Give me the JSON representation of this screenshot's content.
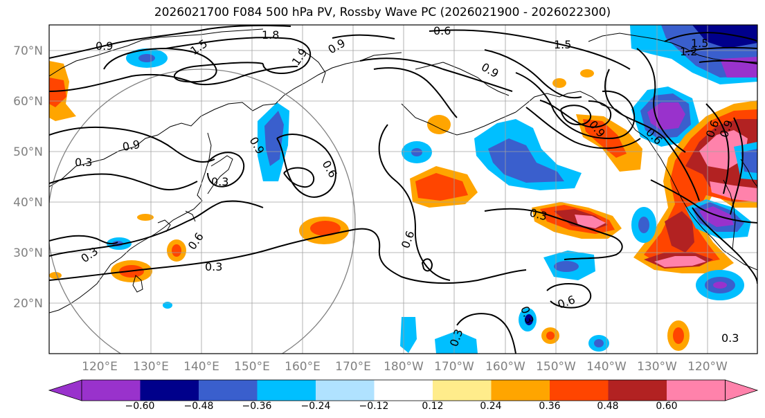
{
  "title": "2026021700 F084 500 hPa PV, Rossby Wave PC (2026021900 - 2026022300)",
  "lat_labels": [
    "70°N",
    "60°N",
    "50°N",
    "40°N",
    "30°N",
    "20°N"
  ],
  "lon_labels": [
    "120°E",
    "130°E",
    "140°E",
    "150°E",
    "160°E",
    "170°E",
    "180°W",
    "170°W",
    "160°W",
    "150°W",
    "140°W",
    "130°W",
    "120°W"
  ],
  "colorbar": {
    "colors": [
      "#9932cc",
      "#00008b",
      "#3a5fcd",
      "#00bfff",
      "#b0e2ff",
      "#ffffff",
      "#ffec8b",
      "#ffa500",
      "#ff4500",
      "#b22222",
      "#ff82ab"
    ],
    "ticks": [
      "−0.60",
      "−0.48",
      "−0.36",
      "−0.24",
      "−0.12",
      "0.12",
      "0.24",
      "0.36",
      "0.48",
      "0.60"
    ]
  },
  "pv_contour_labels": [
    "0.9",
    "1.5",
    "1.8",
    "1.9",
    "0.9",
    "0.6",
    "1.5",
    "0.9",
    "1.5",
    "1.2",
    "0.9",
    "0.3",
    "0.9",
    "0.6",
    "0.3",
    "0.9",
    "0.3",
    "0.6",
    "0.3",
    "0.6",
    "0.3",
    "0.3",
    "0.6",
    "0.3",
    "0.9",
    "0.6",
    "0.6",
    "0.3"
  ]
}
